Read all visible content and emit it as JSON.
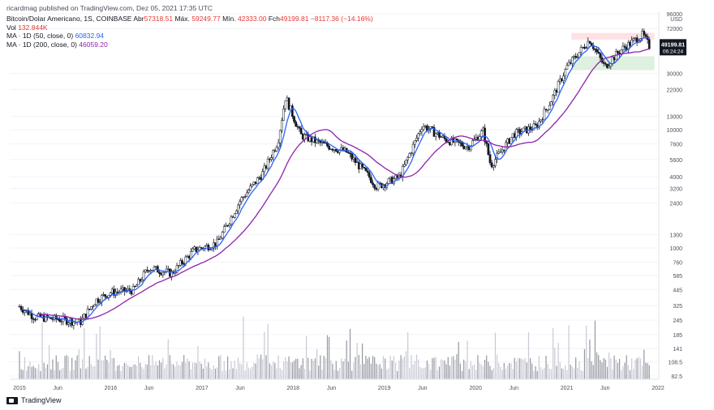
{
  "header": {
    "published": "ricardmag published on TradingView.com, Dez 05, 2021 17:35 UTC"
  },
  "legend": {
    "symbol": "Bitcoin/Dolar Americano, 1S, COINBASE",
    "open_label": "Abr",
    "open_value": "57318.51",
    "high_label": "Máx.",
    "high_value": "59249.77",
    "low_label": "Mín.",
    "low_value": "42333.00",
    "close_label": "Fch",
    "close_value": "49199.81",
    "change": "−8117.36 (−14.16%)",
    "volume_label": "Vol",
    "volume_value": "132.844K",
    "ma50_label": "MA · 1D (50, close, 0)",
    "ma50_value": "60832.94",
    "ma200_label": "MA · 1D (200, close, 0)",
    "ma200_value": "46059.20"
  },
  "footer": {
    "brand": "TradingView"
  },
  "colors": {
    "up": "#ffffff",
    "down": "#131722",
    "ma50": "#2962ff",
    "ma200": "#8e24aa",
    "resistance": "#ffcdd2",
    "support": "#c8e6c9",
    "volume": "#b2b5be"
  },
  "chart_data": {
    "type": "candlestick",
    "scale": "log",
    "currency": "USD",
    "y_ticks": [
      96000,
      72000,
      30000,
      22000,
      13000,
      10000,
      7600,
      5600,
      4000,
      3200,
      2400,
      1300,
      1000,
      760,
      585,
      445,
      325,
      245,
      185,
      141,
      108.5,
      82.5
    ],
    "x_ticks": [
      "2015",
      "Jun",
      "2016",
      "Jun",
      "2017",
      "Jun",
      "2018",
      "Jun",
      "2019",
      "Jun",
      "2020",
      "Jun",
      "2021",
      "Jun",
      "2022"
    ],
    "last_price": "49199.81",
    "countdown": "06:24:24",
    "close_path": [
      {
        "date": "2015-01",
        "close": 320
      },
      {
        "date": "2015-03",
        "close": 260
      },
      {
        "date": "2015-06",
        "close": 250
      },
      {
        "date": "2015-09",
        "close": 235
      },
      {
        "date": "2015-11",
        "close": 360
      },
      {
        "date": "2016-01",
        "close": 420
      },
      {
        "date": "2016-04",
        "close": 440
      },
      {
        "date": "2016-06",
        "close": 680
      },
      {
        "date": "2016-09",
        "close": 610
      },
      {
        "date": "2016-12",
        "close": 960
      },
      {
        "date": "2017-03",
        "close": 1100
      },
      {
        "date": "2017-06",
        "close": 2500
      },
      {
        "date": "2017-09",
        "close": 4300
      },
      {
        "date": "2017-11",
        "close": 8000
      },
      {
        "date": "2017-12",
        "close": 19000
      },
      {
        "date": "2018-02",
        "close": 9000
      },
      {
        "date": "2018-05",
        "close": 7500
      },
      {
        "date": "2018-08",
        "close": 6500
      },
      {
        "date": "2018-11",
        "close": 4000
      },
      {
        "date": "2018-12",
        "close": 3300
      },
      {
        "date": "2019-03",
        "close": 4000
      },
      {
        "date": "2019-06",
        "close": 11000
      },
      {
        "date": "2019-09",
        "close": 8300
      },
      {
        "date": "2019-12",
        "close": 7200
      },
      {
        "date": "2020-02",
        "close": 9800
      },
      {
        "date": "2020-03",
        "close": 5000
      },
      {
        "date": "2020-06",
        "close": 9200
      },
      {
        "date": "2020-09",
        "close": 10700
      },
      {
        "date": "2020-11",
        "close": 18000
      },
      {
        "date": "2021-01",
        "close": 34000
      },
      {
        "date": "2021-04",
        "close": 58000
      },
      {
        "date": "2021-06",
        "close": 34000
      },
      {
        "date": "2021-08",
        "close": 47000
      },
      {
        "date": "2021-11",
        "close": 64000
      },
      {
        "date": "2021-12",
        "close": 49199.81
      }
    ]
  }
}
